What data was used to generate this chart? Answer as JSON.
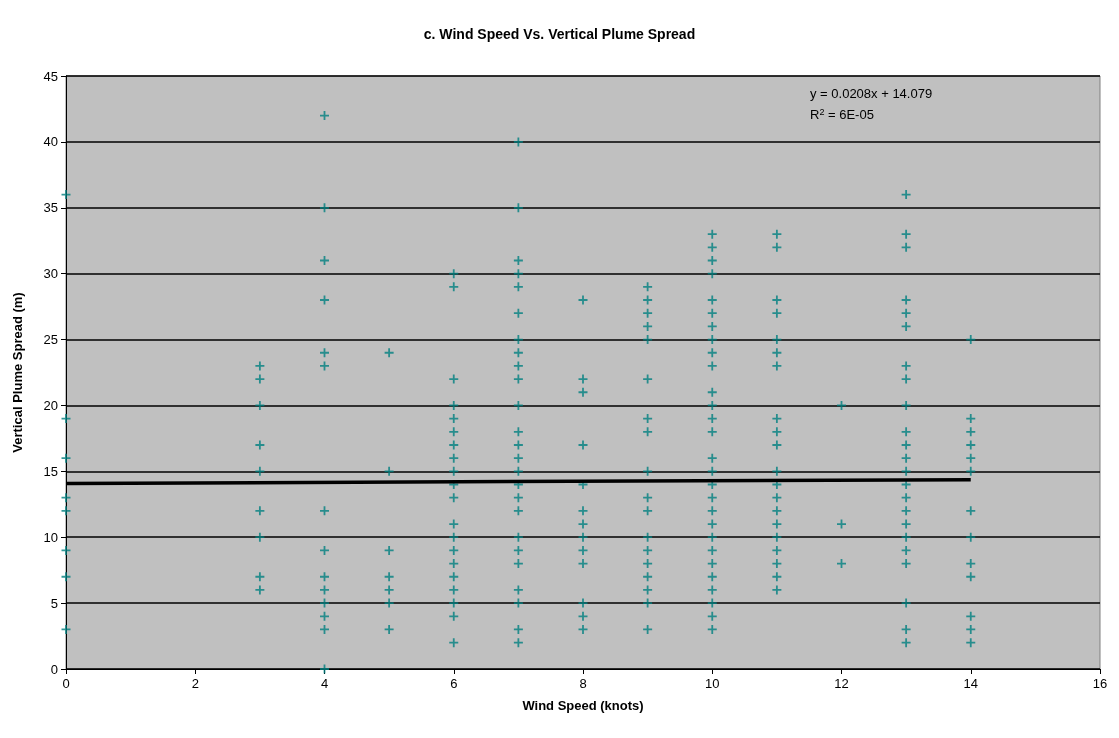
{
  "chart_data": {
    "type": "scatter",
    "title": "c. Wind Speed Vs. Vertical Plume Spread",
    "xlabel": "Wind Speed (knots)",
    "ylabel": "Vertical Plume Spread (m)",
    "annotations": [
      "y = 0.0208x + 14.079",
      "R$^{2}$ = 6E-05"
    ],
    "xlim": [
      0,
      16
    ],
    "xticks": [
      0,
      2,
      4,
      6,
      8,
      10,
      12,
      14,
      16
    ],
    "ylim": [
      0,
      45
    ],
    "yticks": [
      0,
      5,
      10,
      15,
      20,
      25,
      30,
      35,
      40,
      45
    ],
    "grid": "y",
    "marker": "cross",
    "series": [
      {
        "color": "#008080",
        "x": [
          0,
          0,
          0,
          0,
          0,
          0,
          0,
          0,
          3,
          3,
          3,
          3,
          3,
          3,
          3,
          3,
          3,
          4,
          4,
          4,
          4,
          4,
          4,
          4,
          4,
          4,
          4,
          4,
          4,
          4,
          4,
          5,
          5,
          5,
          5,
          5,
          5,
          5,
          6,
          6,
          6,
          6,
          6,
          6,
          6,
          6,
          6,
          6,
          6,
          6,
          6,
          6,
          6,
          6,
          6,
          6,
          6,
          6,
          7,
          7,
          7,
          7,
          7,
          7,
          7,
          7,
          7,
          7,
          7,
          7,
          7,
          7,
          7,
          7,
          7,
          7,
          7,
          7,
          7,
          7,
          7,
          7,
          7,
          8,
          8,
          8,
          8,
          8,
          8,
          8,
          8,
          8,
          8,
          8,
          8,
          8,
          9,
          9,
          9,
          9,
          9,
          9,
          9,
          9,
          9,
          9,
          9,
          9,
          9,
          9,
          9,
          9,
          9,
          9,
          10,
          10,
          10,
          10,
          10,
          10,
          10,
          10,
          10,
          10,
          10,
          10,
          10,
          10,
          10,
          10,
          10,
          10,
          10,
          10,
          10,
          10,
          10,
          10,
          10,
          10,
          10,
          10,
          11,
          11,
          11,
          11,
          11,
          11,
          11,
          11,
          11,
          11,
          11,
          11,
          11,
          11,
          11,
          11,
          11,
          11,
          11,
          11,
          12,
          12,
          12,
          13,
          13,
          13,
          13,
          13,
          13,
          13,
          13,
          13,
          13,
          13,
          13,
          13,
          13,
          13,
          13,
          13,
          13,
          13,
          13,
          13,
          13,
          13,
          14,
          14,
          14,
          14,
          14,
          14,
          14,
          14,
          14,
          14,
          14,
          14,
          14
        ],
        "values": [
          36,
          19,
          16,
          13,
          12,
          9,
          7,
          3,
          23,
          22,
          20,
          17,
          15,
          12,
          10,
          7,
          6,
          42,
          35,
          31,
          28,
          24,
          23,
          12,
          9,
          7,
          6,
          5,
          4,
          3,
          0,
          24,
          15,
          9,
          7,
          6,
          5,
          3,
          30,
          29,
          22,
          20,
          19,
          18,
          17,
          16,
          15,
          14,
          13,
          11,
          10,
          9,
          8,
          7,
          6,
          5,
          4,
          2,
          40,
          35,
          31,
          30,
          29,
          27,
          25,
          24,
          23,
          22,
          20,
          18,
          17,
          16,
          15,
          14,
          13,
          12,
          10,
          9,
          8,
          6,
          5,
          3,
          2,
          28,
          22,
          21,
          17,
          14,
          12,
          11,
          10,
          9,
          8,
          5,
          4,
          3,
          29,
          28,
          27,
          26,
          25,
          22,
          19,
          18,
          15,
          13,
          12,
          10,
          9,
          8,
          7,
          6,
          5,
          3,
          33,
          32,
          31,
          30,
          28,
          27,
          26,
          25,
          24,
          23,
          21,
          20,
          19,
          18,
          16,
          15,
          14,
          13,
          12,
          11,
          10,
          9,
          8,
          7,
          6,
          5,
          4,
          3,
          33,
          32,
          28,
          27,
          25,
          24,
          23,
          19,
          18,
          17,
          15,
          14,
          13,
          12,
          11,
          10,
          9,
          8,
          7,
          6,
          20,
          11,
          8,
          36,
          33,
          32,
          28,
          27,
          26,
          23,
          22,
          20,
          18,
          17,
          16,
          15,
          14,
          13,
          12,
          11,
          10,
          9,
          8,
          5,
          3,
          2,
          25,
          19,
          18,
          17,
          16,
          15,
          12,
          10,
          8,
          7,
          4,
          3,
          2
        ]
      },
      {
        "type": "line",
        "color": "#000000",
        "marker": "none",
        "x": [
          0,
          14
        ],
        "values": [
          14.08,
          14.37
        ]
      }
    ]
  }
}
